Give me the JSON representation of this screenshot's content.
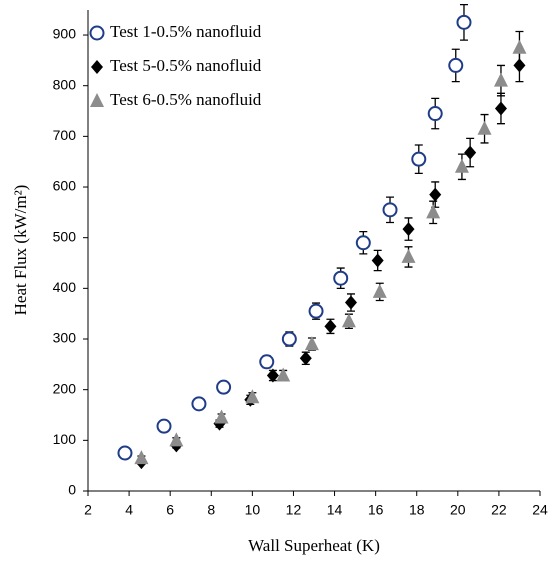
{
  "chart_data": {
    "type": "scatter",
    "xlabel": "Wall Superheat (K)",
    "ylabel": "Heat Flux (kW/m²)",
    "xlim": [
      2,
      24
    ],
    "xticks": [
      2,
      4,
      6,
      8,
      10,
      12,
      14,
      16,
      18,
      20,
      22,
      24
    ],
    "ylim": [
      0,
      950
    ],
    "yticks": [
      0,
      100,
      200,
      300,
      400,
      500,
      600,
      700,
      800,
      900
    ],
    "series": [
      {
        "name": "Test 1-0.5% nanofluid",
        "color": "#1f3c88",
        "marker": "open-circle",
        "x": [
          3.8,
          5.7,
          7.4,
          8.6,
          10.7,
          11.8,
          13.1,
          14.3,
          15.4,
          16.7,
          18.1,
          18.9,
          19.9,
          20.3
        ],
        "values": [
          75,
          128,
          172,
          205,
          255,
          300,
          355,
          420,
          490,
          555,
          655,
          745,
          840,
          925
        ],
        "errors": [
          5,
          6,
          8,
          10,
          12,
          14,
          16,
          20,
          22,
          25,
          28,
          30,
          32,
          35
        ]
      },
      {
        "name": "Test 5-0.5% nanofluid",
        "color": "#000000",
        "marker": "diamond",
        "x": [
          4.6,
          6.3,
          8.4,
          9.9,
          11.0,
          12.6,
          13.8,
          14.8,
          16.1,
          17.6,
          18.9,
          20.6,
          22.1,
          23.0
        ],
        "values": [
          57,
          90,
          133,
          180,
          228,
          262,
          325,
          372,
          455,
          517,
          585,
          668,
          755,
          840
        ],
        "errors": [
          4,
          5,
          7,
          9,
          10,
          12,
          14,
          17,
          20,
          22,
          25,
          28,
          30,
          32
        ]
      },
      {
        "name": "Test 6-0.5% nanofluid",
        "color": "#8c8c8c",
        "marker": "triangle",
        "x": [
          4.6,
          6.3,
          8.5,
          10.0,
          11.5,
          12.9,
          14.7,
          16.2,
          17.6,
          18.8,
          20.2,
          21.3,
          22.1,
          23.0
        ],
        "values": [
          65,
          100,
          145,
          185,
          228,
          290,
          335,
          393,
          462,
          550,
          640,
          715,
          810,
          875
        ],
        "errors": [
          4,
          5,
          7,
          9,
          10,
          12,
          14,
          17,
          20,
          22,
          25,
          28,
          30,
          32
        ]
      }
    ]
  }
}
